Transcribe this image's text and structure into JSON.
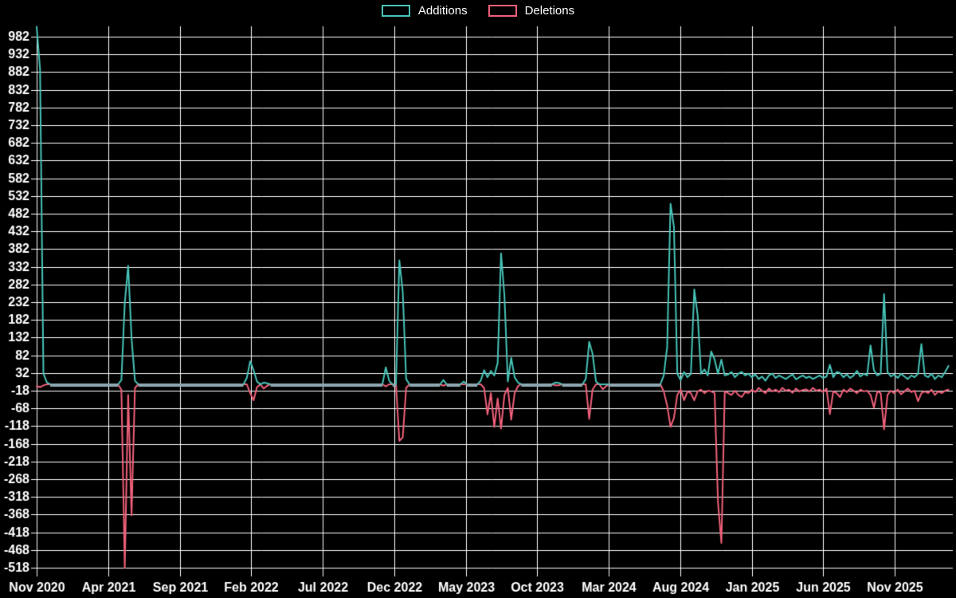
{
  "appearance": {
    "background": "#000000",
    "grid_color": "#ffffff",
    "text_color": "#ffffff",
    "baseline_overlap_color": "#90a8b2"
  },
  "legend": {
    "items": [
      {
        "label": "Additions",
        "color": "#46c3b7"
      },
      {
        "label": "Deletions",
        "color": "#f0607a"
      }
    ]
  },
  "chart_data": {
    "type": "line",
    "title": "",
    "xlabel": "",
    "ylabel": "",
    "grid": true,
    "legend_position": "top-center",
    "x_axis": {
      "tick_labels": [
        "Nov 2020",
        "Apr 2021",
        "Sep 2021",
        "Feb 2022",
        "Jul 2022",
        "Dec 2022",
        "May 2023",
        "Oct 2023",
        "Mar 2024",
        "Aug 2024",
        "Jan 2025",
        "Jun 2025",
        "Nov 2025"
      ],
      "unit": "weeks",
      "weeks_total": 270,
      "start_label": "Nov 2020"
    },
    "y_axis": {
      "tick_min": -518,
      "tick_max": 982,
      "tick_step": 50,
      "tick_labels": [
        982,
        932,
        882,
        832,
        782,
        732,
        682,
        632,
        582,
        532,
        482,
        432,
        382,
        332,
        282,
        232,
        182,
        132,
        82,
        32,
        -18,
        -68,
        -118,
        -168,
        -218,
        -268,
        -318,
        -368,
        -418,
        -468,
        -518
      ],
      "plot_value_range": [
        -525,
        1010
      ]
    },
    "baseline_value": 0,
    "series": [
      {
        "name": "Additions",
        "color": "#46c3b7",
        "default_value": 0,
        "points": [
          [
            0,
            1010
          ],
          [
            1,
            890
          ],
          [
            2,
            30
          ],
          [
            3,
            6
          ],
          [
            25,
            12
          ],
          [
            26,
            230
          ],
          [
            27,
            335
          ],
          [
            28,
            130
          ],
          [
            29,
            10
          ],
          [
            62,
            18
          ],
          [
            63,
            65
          ],
          [
            64,
            40
          ],
          [
            65,
            8
          ],
          [
            67,
            5
          ],
          [
            68,
            3
          ],
          [
            103,
            48
          ],
          [
            104,
            10
          ],
          [
            107,
            350
          ],
          [
            108,
            262
          ],
          [
            109,
            15
          ],
          [
            120,
            12
          ],
          [
            126,
            8
          ],
          [
            131,
            10
          ],
          [
            132,
            40
          ],
          [
            133,
            20
          ],
          [
            134,
            38
          ],
          [
            135,
            25
          ],
          [
            136,
            60
          ],
          [
            137,
            370
          ],
          [
            138,
            250
          ],
          [
            139,
            8
          ],
          [
            140,
            75
          ],
          [
            141,
            20
          ],
          [
            142,
            5
          ],
          [
            153,
            5
          ],
          [
            154,
            4
          ],
          [
            162,
            15
          ],
          [
            163,
            120
          ],
          [
            164,
            86
          ],
          [
            165,
            8
          ],
          [
            185,
            25
          ],
          [
            186,
            105
          ],
          [
            187,
            510
          ],
          [
            188,
            445
          ],
          [
            189,
            30
          ],
          [
            190,
            12
          ],
          [
            191,
            35
          ],
          [
            192,
            20
          ],
          [
            193,
            30
          ],
          [
            194,
            268
          ],
          [
            195,
            195
          ],
          [
            196,
            30
          ],
          [
            197,
            42
          ],
          [
            198,
            25
          ],
          [
            199,
            93
          ],
          [
            200,
            70
          ],
          [
            201,
            30
          ],
          [
            202,
            70
          ],
          [
            203,
            25
          ],
          [
            204,
            28
          ],
          [
            205,
            35
          ],
          [
            206,
            20
          ],
          [
            207,
            30
          ],
          [
            208,
            35
          ],
          [
            209,
            25
          ],
          [
            210,
            30
          ],
          [
            211,
            20
          ],
          [
            212,
            28
          ],
          [
            213,
            15
          ],
          [
            214,
            22
          ],
          [
            215,
            10
          ],
          [
            216,
            25
          ],
          [
            217,
            30
          ],
          [
            218,
            18
          ],
          [
            219,
            25
          ],
          [
            220,
            20
          ],
          [
            221,
            15
          ],
          [
            222,
            22
          ],
          [
            223,
            28
          ],
          [
            224,
            14
          ],
          [
            225,
            20
          ],
          [
            226,
            25
          ],
          [
            227,
            18
          ],
          [
            228,
            22
          ],
          [
            229,
            15
          ],
          [
            230,
            20
          ],
          [
            231,
            25
          ],
          [
            232,
            18
          ],
          [
            233,
            22
          ],
          [
            234,
            55
          ],
          [
            235,
            20
          ],
          [
            236,
            35
          ],
          [
            237,
            32
          ],
          [
            238,
            20
          ],
          [
            239,
            28
          ],
          [
            240,
            18
          ],
          [
            241,
            25
          ],
          [
            242,
            38
          ],
          [
            243,
            22
          ],
          [
            244,
            30
          ],
          [
            245,
            25
          ],
          [
            246,
            110
          ],
          [
            247,
            40
          ],
          [
            248,
            25
          ],
          [
            249,
            30
          ],
          [
            250,
            255
          ],
          [
            251,
            35
          ],
          [
            252,
            22
          ],
          [
            253,
            28
          ],
          [
            254,
            18
          ],
          [
            255,
            30
          ],
          [
            256,
            22
          ],
          [
            257,
            15
          ],
          [
            258,
            25
          ],
          [
            259,
            20
          ],
          [
            260,
            30
          ],
          [
            261,
            114
          ],
          [
            262,
            25
          ],
          [
            263,
            20
          ],
          [
            264,
            30
          ],
          [
            265,
            15
          ],
          [
            266,
            25
          ],
          [
            267,
            20
          ],
          [
            268,
            35
          ],
          [
            269,
            52
          ]
        ]
      },
      {
        "name": "Deletions",
        "color": "#f0607a",
        "default_value": 0,
        "points": [
          [
            0,
            -5
          ],
          [
            1,
            -8
          ],
          [
            2,
            -3
          ],
          [
            25,
            -15
          ],
          [
            26,
            -518
          ],
          [
            27,
            -30
          ],
          [
            28,
            -370
          ],
          [
            29,
            -10
          ],
          [
            63,
            -25
          ],
          [
            64,
            -45
          ],
          [
            65,
            -8
          ],
          [
            67,
            -12
          ],
          [
            68,
            -4
          ],
          [
            103,
            -6
          ],
          [
            107,
            -160
          ],
          [
            108,
            -150
          ],
          [
            109,
            -10
          ],
          [
            120,
            -4
          ],
          [
            132,
            -10
          ],
          [
            133,
            -85
          ],
          [
            134,
            -25
          ],
          [
            135,
            -120
          ],
          [
            136,
            -40
          ],
          [
            137,
            -125
          ],
          [
            138,
            -30
          ],
          [
            139,
            -10
          ],
          [
            140,
            -100
          ],
          [
            141,
            -25
          ],
          [
            142,
            -5
          ],
          [
            153,
            -3
          ],
          [
            154,
            -3
          ],
          [
            163,
            -98
          ],
          [
            164,
            -15
          ],
          [
            167,
            -14
          ],
          [
            168,
            -5
          ],
          [
            185,
            -20
          ],
          [
            186,
            -60
          ],
          [
            187,
            -120
          ],
          [
            188,
            -95
          ],
          [
            189,
            -30
          ],
          [
            190,
            -15
          ],
          [
            191,
            -45
          ],
          [
            192,
            -20
          ],
          [
            193,
            -25
          ],
          [
            194,
            -45
          ],
          [
            195,
            -20
          ],
          [
            196,
            -15
          ],
          [
            197,
            -25
          ],
          [
            198,
            -18
          ],
          [
            199,
            -20
          ],
          [
            200,
            -25
          ],
          [
            201,
            -334
          ],
          [
            202,
            -448
          ],
          [
            203,
            -20
          ],
          [
            204,
            -25
          ],
          [
            205,
            -30
          ],
          [
            206,
            -18
          ],
          [
            207,
            -30
          ],
          [
            208,
            -36
          ],
          [
            209,
            -22
          ],
          [
            210,
            -25
          ],
          [
            211,
            -15
          ],
          [
            212,
            -22
          ],
          [
            213,
            -10
          ],
          [
            214,
            -18
          ],
          [
            215,
            -25
          ],
          [
            216,
            -12
          ],
          [
            217,
            -20
          ],
          [
            218,
            -15
          ],
          [
            219,
            -22
          ],
          [
            220,
            -10
          ],
          [
            221,
            -18
          ],
          [
            222,
            -15
          ],
          [
            223,
            -24
          ],
          [
            224,
            -12
          ],
          [
            225,
            -20
          ],
          [
            226,
            -16
          ],
          [
            227,
            -14
          ],
          [
            228,
            -20
          ],
          [
            229,
            -10
          ],
          [
            230,
            -18
          ],
          [
            231,
            -15
          ],
          [
            232,
            -22
          ],
          [
            233,
            -12
          ],
          [
            234,
            -84
          ],
          [
            235,
            -20
          ],
          [
            236,
            -25
          ],
          [
            237,
            -36
          ],
          [
            238,
            -15
          ],
          [
            239,
            -22
          ],
          [
            240,
            -12
          ],
          [
            241,
            -18
          ],
          [
            242,
            -25
          ],
          [
            243,
            -15
          ],
          [
            244,
            -20
          ],
          [
            245,
            -18
          ],
          [
            246,
            -30
          ],
          [
            247,
            -66
          ],
          [
            248,
            -20
          ],
          [
            249,
            -25
          ],
          [
            250,
            -127
          ],
          [
            251,
            -30
          ],
          [
            252,
            -18
          ],
          [
            253,
            -25
          ],
          [
            254,
            -15
          ],
          [
            255,
            -28
          ],
          [
            256,
            -20
          ],
          [
            257,
            -12
          ],
          [
            258,
            -22
          ],
          [
            259,
            -18
          ],
          [
            260,
            -48
          ],
          [
            261,
            -25
          ],
          [
            262,
            -20
          ],
          [
            263,
            -25
          ],
          [
            264,
            -15
          ],
          [
            265,
            -30
          ],
          [
            266,
            -20
          ],
          [
            267,
            -25
          ],
          [
            268,
            -18
          ],
          [
            269,
            -15
          ]
        ]
      }
    ]
  }
}
